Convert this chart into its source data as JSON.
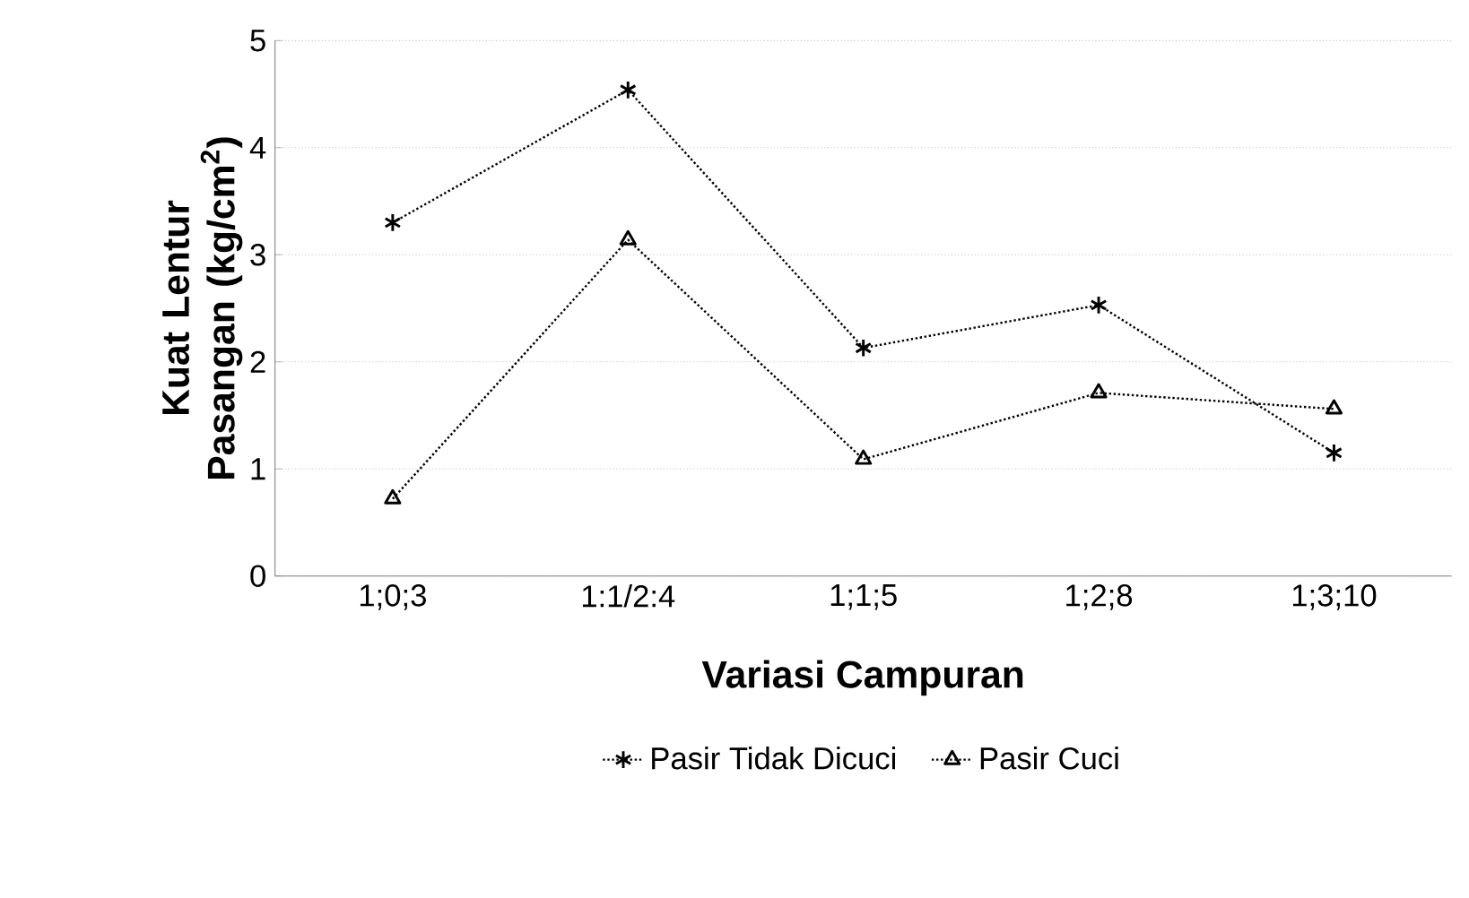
{
  "chart_data": {
    "type": "line",
    "xlabel": "Variasi Campuran",
    "ylabel": "Kuat Lentur Pasangan (kg/cm$^{2}$)",
    "categories": [
      "1;0;3",
      "1:1/2:4",
      "1;1;5",
      "1;2;8",
      "1;3;10"
    ],
    "series": [
      {
        "name": "Pasir Tidak Dicuci",
        "color": "#000000",
        "marker": "cross",
        "values": [
          3.3,
          4.54,
          2.13,
          2.53,
          1.15
        ]
      },
      {
        "name": "Pasir Cuci",
        "color": "#000000",
        "marker": "triangle",
        "values": [
          0.72,
          3.14,
          1.09,
          1.71,
          1.56
        ]
      }
    ],
    "ylim": [
      0,
      5
    ],
    "yticks": [
      0,
      1,
      2,
      3,
      4,
      5
    ],
    "grid": "y",
    "legend": "bottom",
    "line_style": "dotted"
  }
}
